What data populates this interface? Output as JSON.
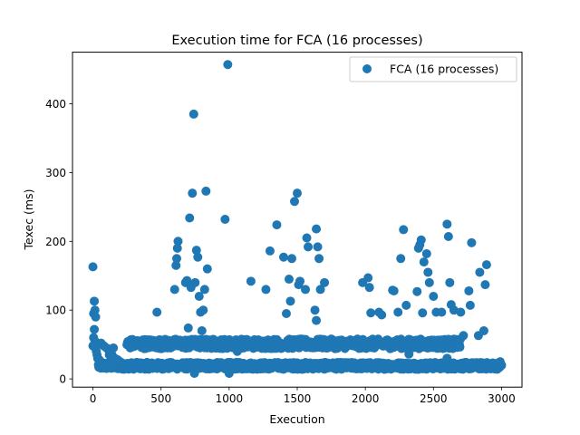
{
  "chart_data": {
    "type": "scatter",
    "title": "Execution time for FCA (16 processes)",
    "xlabel": "Execution",
    "ylabel": "Texec (ms)",
    "xlim": [
      -150,
      3150
    ],
    "ylim": [
      -12,
      475
    ],
    "xticks": [
      0,
      500,
      1000,
      1500,
      2000,
      2500,
      3000
    ],
    "yticks": [
      0,
      100,
      200,
      300,
      400
    ],
    "legend": {
      "position": "top-right"
    },
    "colors": {
      "series": "#1f77b4"
    },
    "series": [
      {
        "name": "FCA (16 processes)",
        "points": [
          [
            0,
            163
          ],
          [
            5,
            95
          ],
          [
            10,
            113
          ],
          [
            15,
            100
          ],
          [
            20,
            90
          ],
          [
            10,
            72
          ],
          [
            5,
            60
          ],
          [
            15,
            55
          ],
          [
            0,
            48
          ],
          [
            20,
            45
          ],
          [
            25,
            40
          ],
          [
            30,
            35
          ],
          [
            35,
            30
          ],
          [
            45,
            28
          ],
          [
            60,
            25
          ],
          [
            80,
            22
          ],
          [
            100,
            20
          ],
          [
            130,
            18
          ],
          [
            60,
            52
          ],
          [
            80,
            48
          ],
          [
            100,
            45
          ],
          [
            120,
            40
          ],
          [
            140,
            35
          ],
          [
            160,
            30
          ],
          [
            180,
            28
          ],
          [
            200,
            25
          ],
          [
            150,
            45
          ],
          [
            120,
            35
          ],
          [
            470,
            97
          ],
          [
            600,
            130
          ],
          [
            610,
            165
          ],
          [
            615,
            175
          ],
          [
            620,
            190
          ],
          [
            625,
            200
          ],
          [
            680,
            140
          ],
          [
            690,
            143
          ],
          [
            700,
            74
          ],
          [
            710,
            234
          ],
          [
            720,
            133
          ],
          [
            730,
            270
          ],
          [
            740,
            385
          ],
          [
            750,
            140
          ],
          [
            760,
            187
          ],
          [
            770,
            177
          ],
          [
            780,
            120
          ],
          [
            790,
            97
          ],
          [
            800,
            70
          ],
          [
            810,
            100
          ],
          [
            820,
            130
          ],
          [
            830,
            273
          ],
          [
            840,
            160
          ],
          [
            970,
            232
          ],
          [
            990,
            457
          ],
          [
            1000,
            8
          ],
          [
            745,
            8
          ],
          [
            1060,
            40
          ],
          [
            1160,
            142
          ],
          [
            1270,
            130
          ],
          [
            1300,
            186
          ],
          [
            1350,
            224
          ],
          [
            1400,
            177
          ],
          [
            1420,
            95
          ],
          [
            1440,
            145
          ],
          [
            1450,
            113
          ],
          [
            1460,
            175
          ],
          [
            1480,
            258
          ],
          [
            1500,
            270
          ],
          [
            1510,
            137
          ],
          [
            1520,
            142
          ],
          [
            1560,
            130
          ],
          [
            1570,
            205
          ],
          [
            1580,
            192
          ],
          [
            1640,
            218
          ],
          [
            1650,
            192
          ],
          [
            1660,
            175
          ],
          [
            1630,
            100
          ],
          [
            1640,
            85
          ],
          [
            1670,
            130
          ],
          [
            1700,
            140
          ],
          [
            1980,
            140
          ],
          [
            2020,
            147
          ],
          [
            2030,
            133
          ],
          [
            2040,
            96
          ],
          [
            2100,
            97
          ],
          [
            2120,
            93
          ],
          [
            2200,
            129
          ],
          [
            2210,
            128
          ],
          [
            2240,
            97
          ],
          [
            2260,
            175
          ],
          [
            2280,
            217
          ],
          [
            2300,
            107
          ],
          [
            2320,
            36
          ],
          [
            2380,
            127
          ],
          [
            2390,
            190
          ],
          [
            2400,
            195
          ],
          [
            2410,
            202
          ],
          [
            2420,
            96
          ],
          [
            2430,
            170
          ],
          [
            2450,
            182
          ],
          [
            2460,
            155
          ],
          [
            2470,
            140
          ],
          [
            2500,
            120
          ],
          [
            2520,
            97
          ],
          [
            2560,
            97
          ],
          [
            2600,
            225
          ],
          [
            2610,
            207
          ],
          [
            2620,
            140
          ],
          [
            2630,
            108
          ],
          [
            2650,
            100
          ],
          [
            2700,
            97
          ],
          [
            2720,
            63
          ],
          [
            2760,
            128
          ],
          [
            2770,
            107
          ],
          [
            2780,
            198
          ],
          [
            2830,
            63
          ],
          [
            2840,
            155
          ],
          [
            2870,
            70
          ],
          [
            2880,
            137
          ],
          [
            2890,
            166
          ],
          [
            2990,
            25
          ],
          [
            3000,
            20
          ],
          [
            2600,
            30
          ]
        ]
      }
    ]
  }
}
